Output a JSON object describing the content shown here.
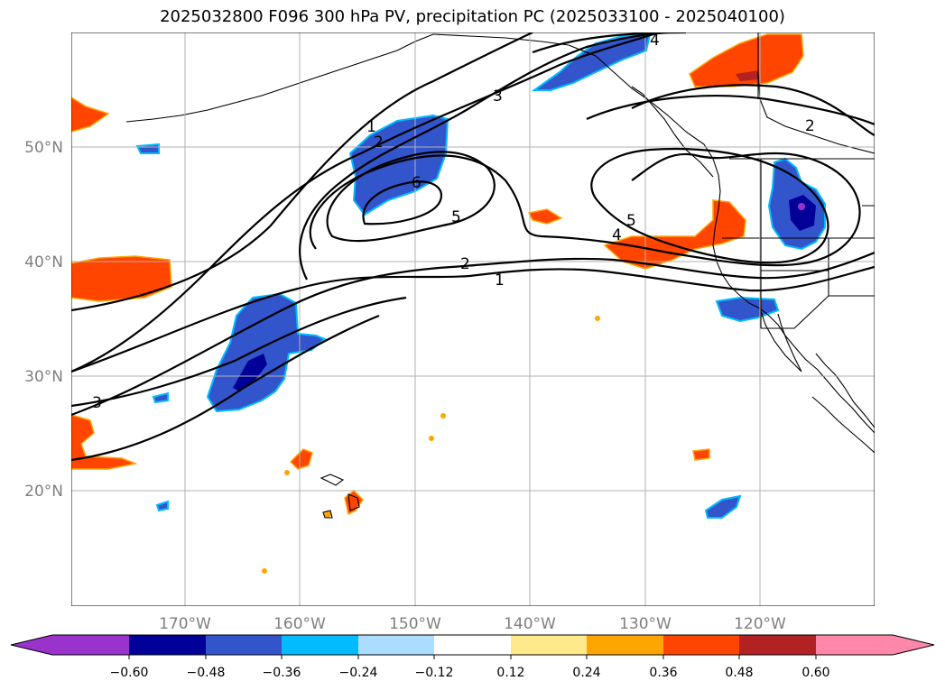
{
  "title": "2025032800 F096 300 hPa PV, precipitation PC (2025033100 - 2025040100)",
  "lat_labels": [
    "50°N",
    "40°N",
    "30°N",
    "20°N"
  ],
  "lon_labels": [
    "170°W",
    "160°W",
    "150°W",
    "140°W",
    "130°W",
    "120°W"
  ],
  "contour_labels": [
    "1",
    "2",
    "3",
    "4",
    "5",
    "6",
    "5",
    "4",
    "2",
    "1",
    "3",
    "2",
    "4"
  ],
  "colorbar": {
    "ticks": [
      "−0.60",
      "−0.48",
      "−0.36",
      "−0.24",
      "−0.12",
      "0.12",
      "0.24",
      "0.36",
      "0.48",
      "0.60"
    ],
    "colors": [
      "#9933cc",
      "#000099",
      "#3355cc",
      "#00bbff",
      "#aaddff",
      "#ffffff",
      "#ffe98a",
      "#ffa500",
      "#ff4500",
      "#b22222",
      "#ff88aa"
    ]
  },
  "colors": {
    "negative_strong": "#000099",
    "negative_mid": "#3355cc",
    "negative_light": "#00bbff",
    "positive_light": "#ffe98a",
    "positive_mid": "#ffa500",
    "positive_strong": "#ff4500",
    "positive_max": "#b22222",
    "contour": "#000000",
    "grid": "#b0b0b0"
  }
}
